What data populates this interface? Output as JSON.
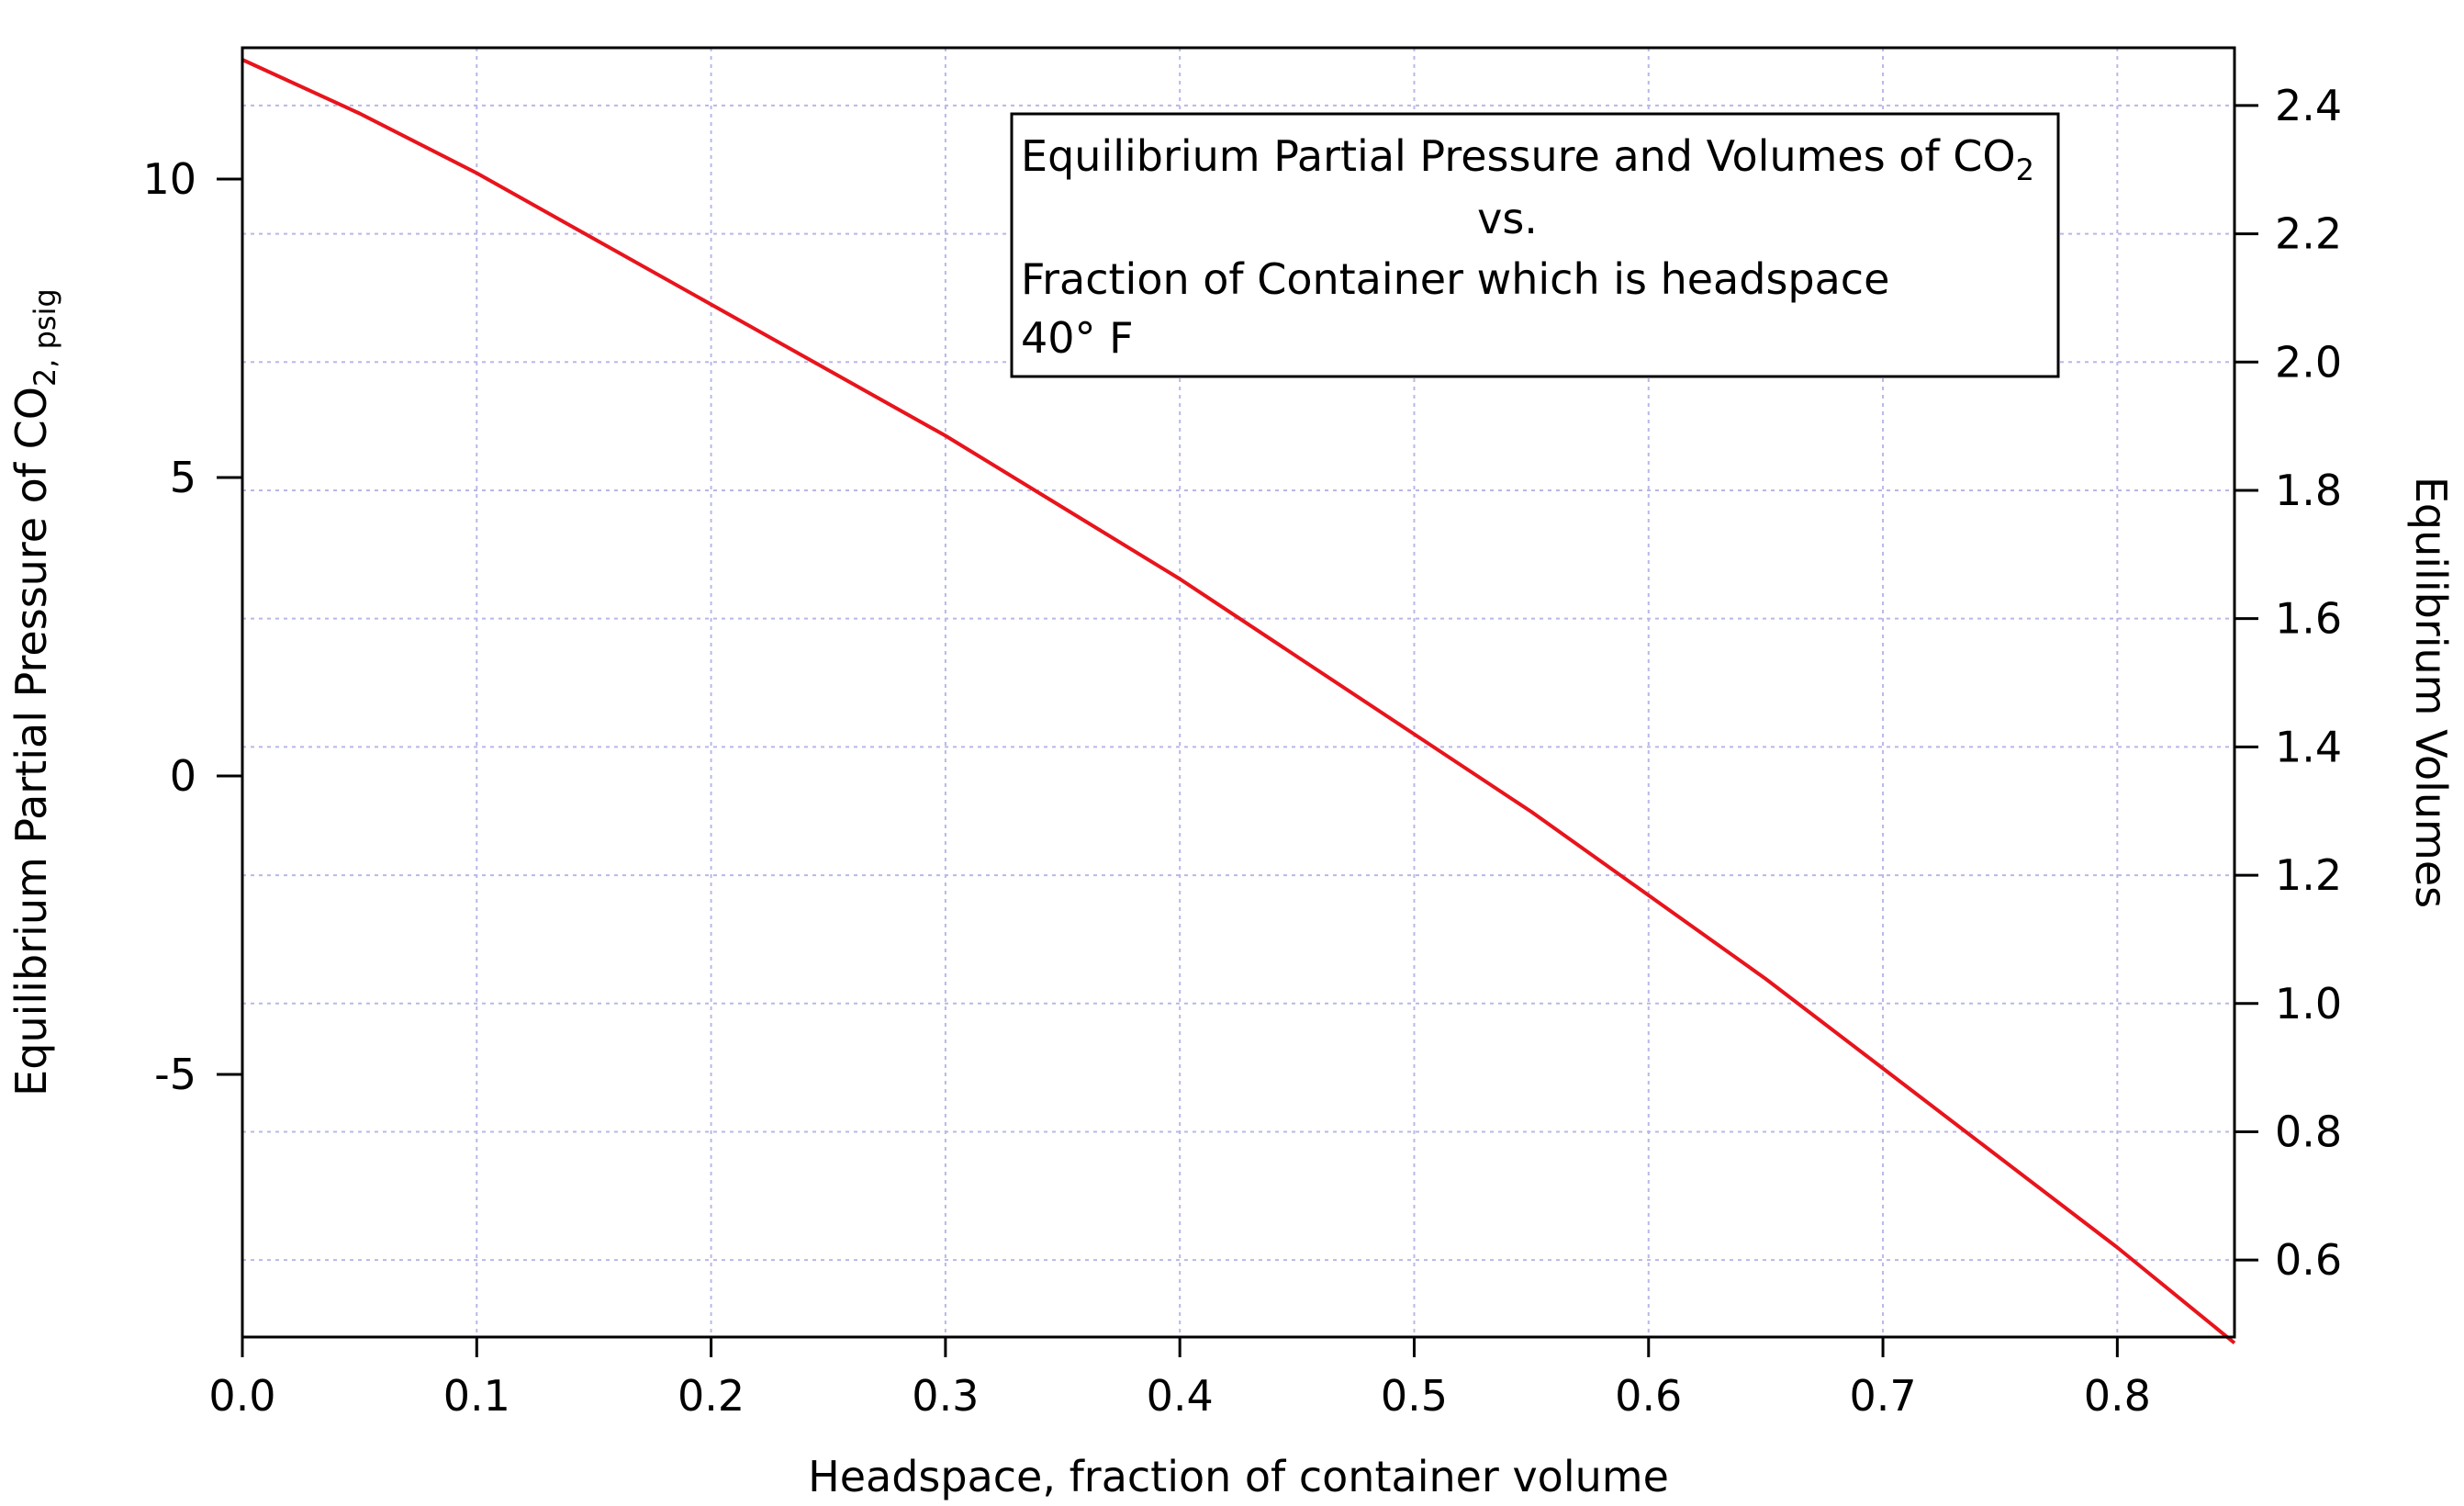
{
  "chart_data": {
    "type": "line",
    "title_lines": [
      "Equilibrium Partial Pressure and Volumes of CO",
      "vs.",
      "Fraction of Container which is headspace",
      "40° F"
    ],
    "title_subscript": "2",
    "xlabel": "Headspace, fraction of container volume",
    "ylabel_left": "Equilibrium Partial Pressure of CO",
    "ylabel_left_subscript": "2, psig",
    "ylabel_right": "Equilibrium Volumes",
    "xlim": [
      0,
      0.85
    ],
    "ylim_left": [
      -9.4,
      12.2
    ],
    "ylim_right": [
      0.48,
      2.49
    ],
    "x_ticks": [
      "0.0",
      "0.1",
      "0.2",
      "0.3",
      "0.4",
      "0.5",
      "0.6",
      "0.7",
      "0.8"
    ],
    "x_tick_values": [
      0,
      0.1,
      0.2,
      0.3,
      0.4,
      0.5,
      0.6,
      0.7,
      0.8
    ],
    "y_left_ticks": [
      "10",
      "5",
      "0",
      "-5"
    ],
    "y_left_tick_values": [
      10,
      5,
      0,
      -5
    ],
    "y_right_ticks": [
      "2.4",
      "2.2",
      "2.0",
      "1.8",
      "1.6",
      "1.4",
      "1.2",
      "1.0",
      "0.8",
      "0.6"
    ],
    "y_right_tick_values": [
      2.4,
      2.2,
      2.0,
      1.8,
      1.6,
      1.4,
      1.2,
      1.0,
      0.8,
      0.6
    ],
    "grid": true,
    "series": [
      {
        "color": "#e8141c",
        "axis": "left",
        "x": [
          0.0,
          0.05,
          0.1,
          0.15,
          0.2,
          0.25,
          0.3,
          0.35,
          0.4,
          0.45,
          0.5,
          0.55,
          0.6,
          0.65,
          0.7,
          0.75,
          0.8,
          0.85
        ],
        "y": [
          12.0,
          11.1,
          10.1,
          9.0,
          7.9,
          6.8,
          5.7,
          4.5,
          3.3,
          2.0,
          0.7,
          -0.6,
          -2.0,
          -3.4,
          -4.9,
          -6.4,
          -7.9,
          -9.5
        ]
      }
    ]
  },
  "colors": {
    "line": "#e8141c",
    "grid": "#b8b8e8",
    "axis": "#000000"
  }
}
